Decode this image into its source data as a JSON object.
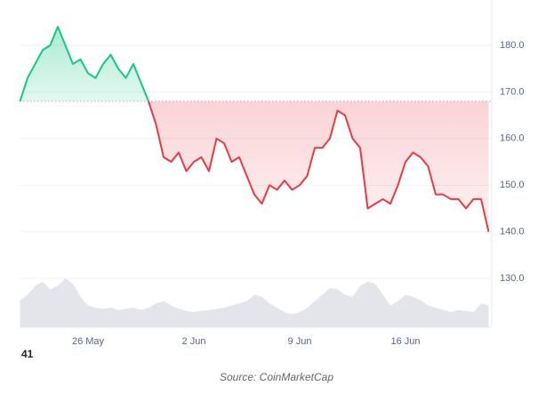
{
  "chart_data": {
    "type": "baseline-line",
    "categories": [
      null,
      null,
      null,
      null,
      null,
      null,
      null,
      null,
      null,
      "26 May",
      null,
      null,
      null,
      null,
      null,
      null,
      null,
      null,
      null,
      null,
      null,
      null,
      null,
      "2 Jun",
      null,
      null,
      null,
      null,
      null,
      null,
      null,
      null,
      null,
      null,
      null,
      null,
      null,
      "9 Jun",
      null,
      null,
      null,
      null,
      null,
      null,
      null,
      null,
      null,
      null,
      null,
      null,
      null,
      "16 Jun",
      null,
      null,
      null,
      null,
      null,
      null,
      null,
      null,
      null,
      null,
      null
    ],
    "values": [
      168,
      173,
      176,
      179,
      180,
      184,
      180,
      176,
      177,
      174,
      173,
      176,
      178,
      175,
      173,
      176,
      172,
      168,
      163,
      156,
      155,
      157,
      153,
      155,
      156,
      153,
      160,
      159,
      155,
      156,
      152,
      148,
      146,
      150,
      149,
      151,
      149,
      150,
      152,
      158,
      158,
      160,
      166,
      165,
      160,
      158,
      145,
      146,
      147,
      146,
      150,
      155,
      157,
      156,
      154,
      148,
      148,
      147,
      147,
      145,
      147,
      147,
      140
    ],
    "volume": [
      25,
      30,
      38,
      42,
      35,
      38,
      45,
      40,
      28,
      20,
      18,
      17,
      18,
      16,
      17,
      18,
      16,
      18,
      22,
      24,
      20,
      17,
      15,
      14,
      15,
      16,
      17,
      18,
      20,
      22,
      24,
      30,
      28,
      22,
      18,
      14,
      12,
      14,
      18,
      24,
      30,
      36,
      35,
      30,
      28,
      38,
      42,
      40,
      30,
      20,
      24,
      30,
      28,
      25,
      20,
      18,
      16,
      14,
      16,
      15,
      14,
      22,
      20
    ],
    "up_color": "#16c784",
    "down_color": "#ea3943",
    "volume_color": "#e3e5ea",
    "ylim": [
      120,
      191
    ],
    "yticks": [
      {
        "value": 130,
        "label": "130.0"
      },
      {
        "value": 140,
        "label": "140.0"
      },
      {
        "value": 150,
        "label": "150.0"
      },
      {
        "value": 160,
        "label": "160.0"
      },
      {
        "value": 170,
        "label": "170.0"
      },
      {
        "value": 180,
        "label": "180.0"
      }
    ],
    "grid": true,
    "corner_label": "41",
    "source": "Source: CoinMarketCap"
  }
}
